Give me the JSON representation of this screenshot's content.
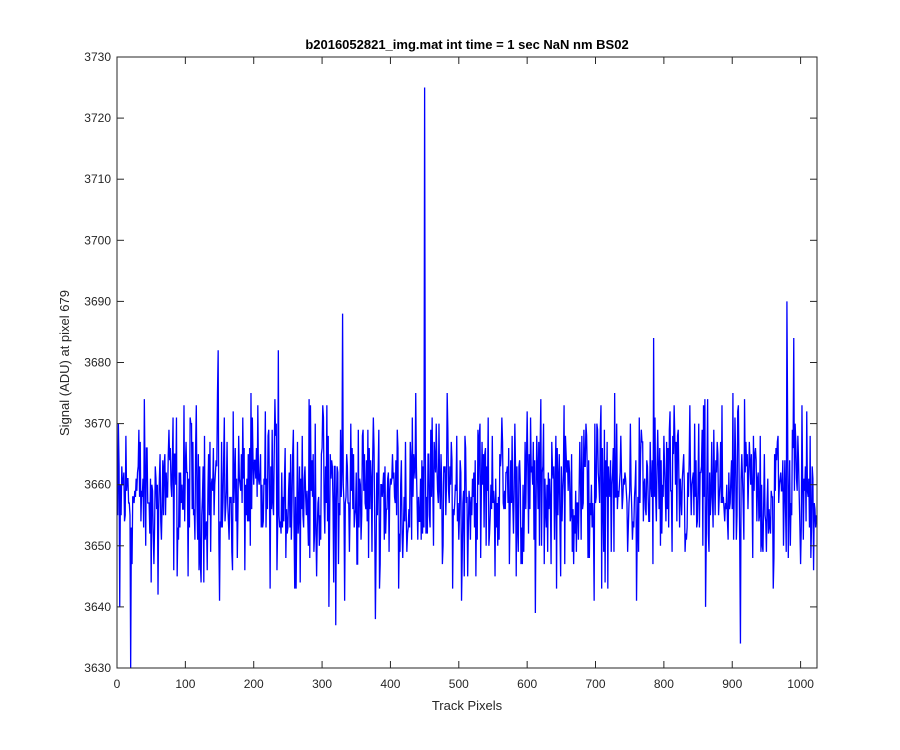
{
  "chart_data": {
    "type": "line",
    "title": "b2016052821_img.mat int time = 1 sec  NaN nm BS02",
    "xlabel": "Track Pixels",
    "ylabel": "Signal (ADU) at pixel 679",
    "xlim": [
      0,
      1024
    ],
    "ylim": [
      3630,
      3730
    ],
    "xticks": [
      0,
      100,
      200,
      300,
      400,
      500,
      600,
      700,
      800,
      900,
      1000
    ],
    "yticks": [
      3630,
      3640,
      3650,
      3660,
      3670,
      3680,
      3690,
      3700,
      3710,
      3720,
      3730
    ],
    "grid": false,
    "series": [
      {
        "color": "#0000ff",
        "x_start": 1,
        "x_step": 1,
        "baseline": 3659,
        "noise_range": [
          3643,
          3675
        ],
        "notable_points": [
          {
            "x": 1,
            "y": 3655
          },
          {
            "x": 4,
            "y": 3640
          },
          {
            "x": 8,
            "y": 3660
          },
          {
            "x": 20,
            "y": 3630
          },
          {
            "x": 24,
            "y": 3658
          },
          {
            "x": 50,
            "y": 3644
          },
          {
            "x": 60,
            "y": 3642
          },
          {
            "x": 148,
            "y": 3682
          },
          {
            "x": 150,
            "y": 3641
          },
          {
            "x": 236,
            "y": 3682
          },
          {
            "x": 310,
            "y": 3640
          },
          {
            "x": 320,
            "y": 3637
          },
          {
            "x": 330,
            "y": 3688
          },
          {
            "x": 333,
            "y": 3641
          },
          {
            "x": 378,
            "y": 3638
          },
          {
            "x": 440,
            "y": 3651
          },
          {
            "x": 450,
            "y": 3725
          },
          {
            "x": 452,
            "y": 3652
          },
          {
            "x": 504,
            "y": 3641
          },
          {
            "x": 612,
            "y": 3639
          },
          {
            "x": 698,
            "y": 3641
          },
          {
            "x": 760,
            "y": 3641
          },
          {
            "x": 785,
            "y": 3684
          },
          {
            "x": 861,
            "y": 3640
          },
          {
            "x": 912,
            "y": 3634
          },
          {
            "x": 960,
            "y": 3643
          },
          {
            "x": 980,
            "y": 3690
          },
          {
            "x": 990,
            "y": 3684
          },
          {
            "x": 1023,
            "y": 3655
          }
        ]
      }
    ]
  }
}
